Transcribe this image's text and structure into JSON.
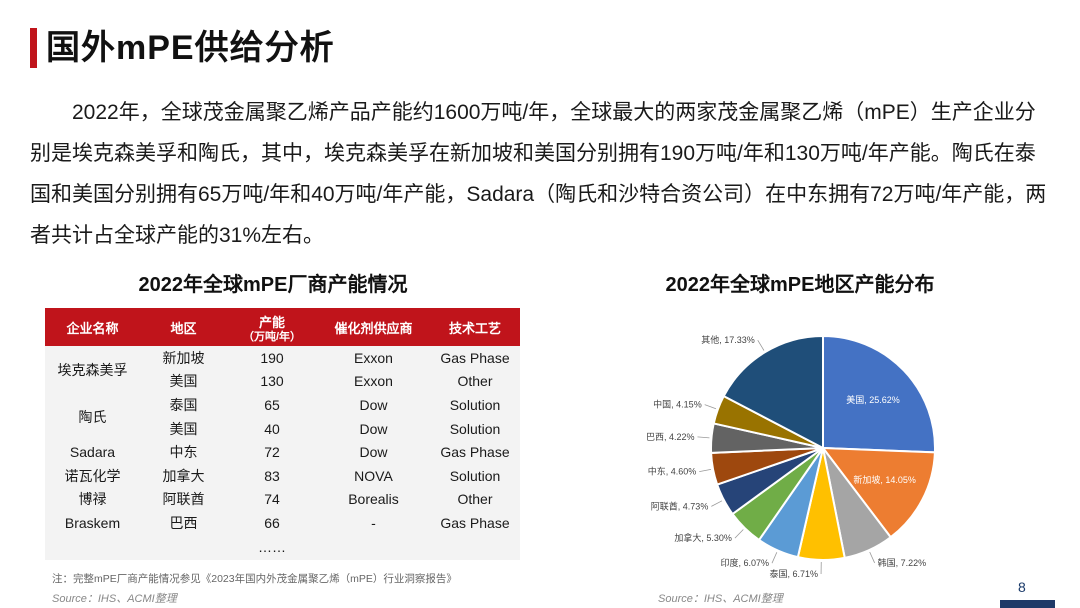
{
  "page": {
    "title": "国外mPE供给分析",
    "intro": "2022年，全球茂金属聚乙烯产品产能约1600万吨/年，全球最大的两家茂金属聚乙烯（mPE）生产企业分别是埃克森美孚和陶氏，其中，埃克森美孚在新加坡和美国分别拥有190万吨/年和130万吨/年产能。陶氏在泰国和美国分别拥有65万吨/年和40万吨/年产能，Sadara（陶氏和沙特合资公司）在中东拥有72万吨/年产能，两者共计占全球产能的31%左右。",
    "page_number": "8",
    "source_left": "Source：IHS、ACMI整理",
    "source_right": "Source：IHS、ACMI整理",
    "note": "注：完整mPE厂商产能情况参见《2023年国内外茂金属聚乙烯（mPE）行业洞察报告》",
    "brand_color": "#c0141b"
  },
  "table": {
    "title": "2022年全球mPE厂商产能情况",
    "headers": {
      "company": "企业名称",
      "region": "地区",
      "capacity": "产能",
      "capacity_unit": "（万吨/年）",
      "catalyst": "催化剂供应商",
      "process": "技术工艺"
    },
    "rows": [
      {
        "company": "埃克森美孚",
        "region": "新加坡",
        "capacity": "190",
        "catalyst": "Exxon",
        "process": "Gas Phase"
      },
      {
        "company": "",
        "region": "美国",
        "capacity": "130",
        "catalyst": "Exxon",
        "process": "Other"
      },
      {
        "company": "陶氏",
        "region": "泰国",
        "capacity": "65",
        "catalyst": "Dow",
        "process": "Solution"
      },
      {
        "company": "",
        "region": "美国",
        "capacity": "40",
        "catalyst": "Dow",
        "process": "Solution"
      },
      {
        "company": "Sadara",
        "region": "中东",
        "capacity": "72",
        "catalyst": "Dow",
        "process": "Gas Phase"
      },
      {
        "company": "诺瓦化学",
        "region": "加拿大",
        "capacity": "83",
        "catalyst": "NOVA",
        "process": "Solution"
      },
      {
        "company": "博禄",
        "region": "阿联酋",
        "capacity": "74",
        "catalyst": "Borealis",
        "process": "Other"
      },
      {
        "company": "Braskem",
        "region": "巴西",
        "capacity": "66",
        "catalyst": "-",
        "process": "Gas Phase"
      }
    ],
    "ellipsis": "……"
  },
  "chart_data": {
    "type": "pie",
    "title": "2022年全球mPE地区产能分布",
    "slices": [
      {
        "label": "美国",
        "value": 25.62,
        "text": "美国, 25.62%",
        "color": "#4472c4"
      },
      {
        "label": "新加坡",
        "value": 14.05,
        "text": "新加坡, 14.05%",
        "color": "#ed7d31"
      },
      {
        "label": "韩国",
        "value": 7.22,
        "text": "韩国, 7.22%",
        "color": "#a5a5a5"
      },
      {
        "label": "泰国",
        "value": 6.71,
        "text": "泰国, 6.71%",
        "color": "#ffc000"
      },
      {
        "label": "印度",
        "value": 6.07,
        "text": "印度, 6.07%",
        "color": "#5b9bd5"
      },
      {
        "label": "加拿大",
        "value": 5.3,
        "text": "加拿大, 5.30%",
        "color": "#70ad47"
      },
      {
        "label": "阿联酋",
        "value": 4.73,
        "text": "阿联酋, 4.73%",
        "color": "#264478"
      },
      {
        "label": "中东",
        "value": 4.6,
        "text": "中东, 4.60%",
        "color": "#9e480e"
      },
      {
        "label": "巴西",
        "value": 4.22,
        "text": "巴西, 4.22%",
        "color": "#636363"
      },
      {
        "label": "中国",
        "value": 4.15,
        "text": "中国, 4.15%",
        "color": "#997300"
      },
      {
        "label": "其他",
        "value": 17.33,
        "text": "其他, 17.33%",
        "color": "#1f4e79"
      }
    ]
  }
}
